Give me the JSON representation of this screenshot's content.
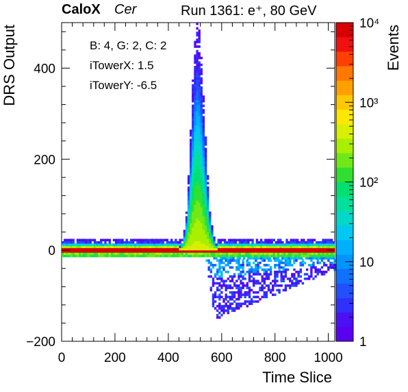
{
  "header": {
    "logo": "CaloX",
    "channel_type": "Cer",
    "run_info": "Run 1361: e⁺, 80 GeV"
  },
  "annotation_lines": [
    "B: 4, G: 2, C: 2",
    "iTowerX: 1.5",
    "iTowerY: -6.5"
  ],
  "chart_data": {
    "type": "heatmap",
    "title": "Run 1361: e⁺, 80 GeV",
    "xlabel": "Time Slice",
    "ylabel": "DRS Output",
    "zlabel": "Events",
    "xlim": [
      0,
      1024
    ],
    "ylim": [
      -200,
      500
    ],
    "zlim": [
      1,
      10000
    ],
    "z_scale": "log",
    "x_ticks": [
      0,
      200,
      400,
      600,
      800,
      1000
    ],
    "y_ticks": [
      -200,
      0,
      200,
      400
    ],
    "z_ticks": [
      {
        "value": 1,
        "label": "1"
      },
      {
        "value": 10,
        "label": "10"
      },
      {
        "value": 100,
        "label": "10²"
      },
      {
        "value": 1000,
        "label": "10³"
      },
      {
        "value": 10000,
        "label": "10⁴"
      }
    ],
    "colormap": [
      "#5a00f0",
      "#4b10f5",
      "#3030ff",
      "#2050ff",
      "#1070ff",
      "#0094ff",
      "#00b0ff",
      "#00c8f0",
      "#00d8c8",
      "#00e098",
      "#00e070",
      "#30e030",
      "#70e818",
      "#a8f000",
      "#d8f000",
      "#ffe800",
      "#ffc800",
      "#ffa000",
      "#ff7800",
      "#ff4000",
      "#f01010",
      "#d80000"
    ],
    "features": {
      "pedestal_band": {
        "x_range": [
          0,
          1024
        ],
        "y_center": 0,
        "peak_events": 10000
      },
      "signal_pulse": {
        "x_peak": 505,
        "x_range": [
          455,
          580
        ],
        "y_max": 500,
        "y_tail": 90
      },
      "undershoot": {
        "x_range": [
          540,
          1024
        ],
        "y_min": -155,
        "x_at_min": 570
      }
    }
  }
}
